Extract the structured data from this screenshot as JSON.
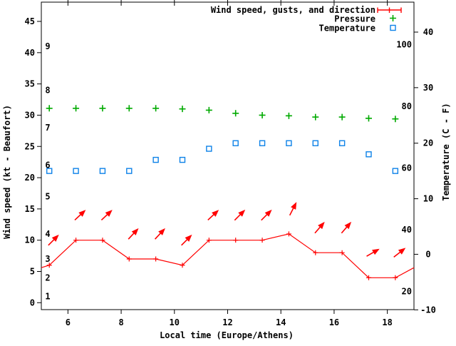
{
  "colors": {
    "background": "#ffffff",
    "axis": "#000000",
    "wind": "#ff0000",
    "title_text": "#990000",
    "pressure": "#00aa00",
    "temperature": "#0d82e8"
  },
  "legend": {
    "title": "Wind speed, gusts, and direction",
    "pressure_label": "Pressure",
    "temperature_label": "Temperature"
  },
  "chart_data": {
    "type": "line",
    "title": "Wind speed, gusts, and direction",
    "x_axis": {
      "label": "Local time (Europe/Athens)",
      "range": [
        5,
        19
      ],
      "ticks": [
        6,
        8,
        10,
        12,
        14,
        16,
        18
      ]
    },
    "y_axis_left": {
      "label": "Wind speed (kt - Beaufort)",
      "range": [
        0,
        45
      ],
      "ticks": [
        0,
        5,
        10,
        15,
        20,
        25,
        30,
        35,
        40,
        45
      ],
      "beaufort_ticks": [
        {
          "beaufort": "1",
          "kt": 1
        },
        {
          "beaufort": "2",
          "kt": 4
        },
        {
          "beaufort": "3",
          "kt": 7
        },
        {
          "beaufort": "4",
          "kt": 11
        },
        {
          "beaufort": "5",
          "kt": 17
        },
        {
          "beaufort": "6",
          "kt": 22
        },
        {
          "beaufort": "7",
          "kt": 28
        },
        {
          "beaufort": "8",
          "kt": 34
        },
        {
          "beaufort": "9",
          "kt": 41
        }
      ]
    },
    "y_axis_right": {
      "label": "Temperature (C - F)",
      "range_c": [
        -10,
        40
      ],
      "c_ticks": [
        40,
        30,
        20,
        10,
        0,
        -10
      ],
      "f_ticks": [
        100,
        80,
        60,
        40,
        20
      ]
    },
    "series": {
      "wind_speed": {
        "name": "Wind speed",
        "times": [
          5.3,
          6.3,
          7.3,
          8.3,
          9.3,
          10.3,
          11.3,
          12.3,
          13.3,
          14.3,
          15.3,
          16.3,
          17.3,
          18.3
        ],
        "values_kt": [
          6,
          10,
          10,
          7,
          7,
          6,
          10,
          10,
          10,
          11,
          8,
          8,
          4,
          4
        ]
      },
      "wind_gusts": {
        "name": "Wind gusts and direction",
        "times": [
          5.4,
          6.4,
          7.4,
          8.4,
          9.4,
          10.4,
          11.4,
          12.4,
          13.4,
          14.4,
          15.4,
          16.4,
          17.4,
          18.4
        ],
        "values_kt": [
          10,
          14,
          14,
          11,
          11,
          10,
          14,
          14,
          14,
          15,
          12,
          12,
          8,
          8
        ],
        "arrow_angles_deg": [
          45,
          43,
          43,
          47,
          47,
          45,
          43,
          45,
          45,
          63,
          49,
          49,
          30,
          38
        ]
      },
      "pressure": {
        "name": "Pressure",
        "times": [
          5.3,
          6.3,
          7.3,
          8.3,
          9.3,
          10.3,
          11.3,
          12.3,
          13.3,
          14.3,
          15.3,
          16.3,
          17.3,
          18.3
        ],
        "values_left_axis_units": [
          31.1,
          31.1,
          31.1,
          31.1,
          31.1,
          31.0,
          30.8,
          30.3,
          30.0,
          29.9,
          29.7,
          29.7,
          29.5,
          29.4
        ]
      },
      "temperature": {
        "name": "Temperature",
        "times": [
          5.3,
          6.3,
          7.3,
          8.3,
          9.3,
          10.3,
          11.3,
          12.3,
          13.3,
          14.3,
          15.3,
          16.3,
          17.3,
          18.3
        ],
        "values_c": [
          15,
          15,
          15,
          15,
          17,
          17,
          19,
          20,
          20,
          20,
          20,
          20,
          18,
          15
        ]
      }
    },
    "wind_line_edges": {
      "start": [
        5.0,
        5.6
      ],
      "end": [
        19.0,
        5.6
      ]
    }
  }
}
